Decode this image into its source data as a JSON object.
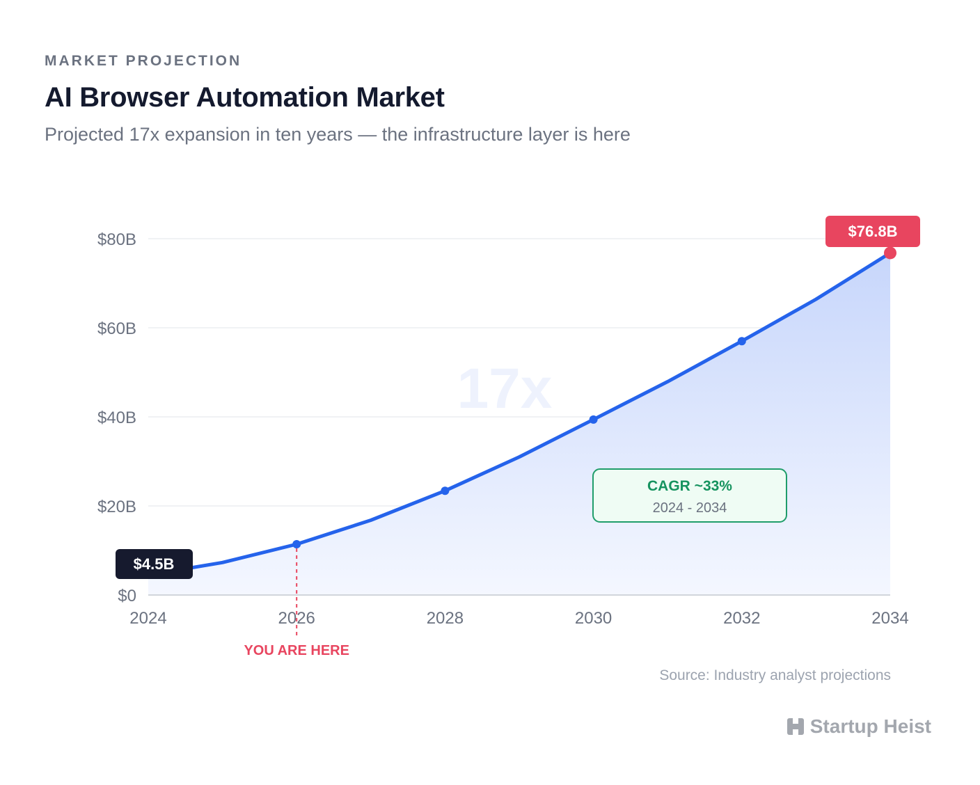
{
  "header": {
    "eyebrow": "MARKET PROJECTION",
    "title": "AI Browser Automation Market",
    "subtitle": "Projected 17x expansion in ten years — the infrastructure layer is here"
  },
  "chart_data": {
    "type": "area",
    "x": [
      2024,
      2025,
      2026,
      2027,
      2028,
      2029,
      2030,
      2031,
      2032,
      2033,
      2034
    ],
    "series": [
      {
        "values": [
          4.5,
          7.3,
          11.4,
          16.8,
          23.4,
          31.0,
          39.4,
          47.9,
          57.0,
          66.4,
          76.8
        ]
      }
    ],
    "x_ticks": [
      "2024",
      "2026",
      "2028",
      "2030",
      "2032",
      "2034"
    ],
    "y_ticks": [
      "$0",
      "$20B",
      "$40B",
      "$60B",
      "$80B"
    ],
    "xlim": [
      2024,
      2034
    ],
    "ylim": [
      0,
      80
    ],
    "grid": true,
    "marker_years": [
      2026,
      2028,
      2030,
      2032
    ],
    "colors": {
      "line": "#2563eb",
      "area_top": "#c7d6fb",
      "area_bottom": "#f4f7ff",
      "start_label_bg": "#161a2e",
      "end_label_bg": "#e8455f",
      "you_are_here": "#e8455f",
      "cagr_border": "#1f9d6a",
      "cagr_bg": "#effcf4",
      "cagr_text": "#16935f",
      "watermark": "#eef2fd"
    },
    "annotations": {
      "start_label": "$4.5B",
      "end_label": "$76.8B",
      "you_are_here": {
        "x": 2026,
        "label": "YOU ARE HERE"
      },
      "watermark": "17x",
      "cagr": {
        "title": "CAGR ~33%",
        "range": "2024 - 2034"
      }
    }
  },
  "footer": {
    "source": "Source: Industry analyst projections",
    "brand": "Startup Heist",
    "brand_icon": "h-block-icon"
  }
}
